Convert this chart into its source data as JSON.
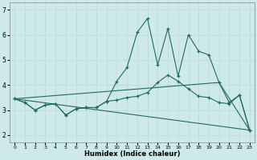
{
  "xlabel": "Humidex (Indice chaleur)",
  "bg_color": "#cde9e9",
  "grid_color": "#c0d8d8",
  "line_color": "#1e6b5e",
  "xlim": [
    -0.5,
    23.5
  ],
  "ylim": [
    1.7,
    7.3
  ],
  "yticks": [
    2,
    3,
    4,
    5,
    6,
    7
  ],
  "xtick_labels": [
    "0",
    "1",
    "2",
    "3",
    "4",
    "5",
    "6",
    "7",
    "8",
    "9",
    "10",
    "11",
    "12",
    "13",
    "14",
    "15",
    "16",
    "17",
    "18",
    "19",
    "20",
    "21",
    "22",
    "23"
  ],
  "lines": [
    {
      "x": [
        0,
        1,
        2,
        3,
        4,
        5,
        6,
        7,
        8,
        9,
        10,
        11,
        12,
        13,
        14,
        15,
        16,
        17,
        18,
        19,
        20,
        21,
        22,
        23
      ],
      "y": [
        3.45,
        3.3,
        3.0,
        3.2,
        3.25,
        2.8,
        3.05,
        3.1,
        3.1,
        3.35,
        4.15,
        4.7,
        6.1,
        6.65,
        4.8,
        6.25,
        4.35,
        6.0,
        5.35,
        5.2,
        4.1,
        3.3,
        3.6,
        2.2
      ],
      "marker": true
    },
    {
      "x": [
        0,
        1,
        2,
        3,
        4,
        5,
        6,
        7,
        8,
        9,
        10,
        11,
        12,
        13,
        14,
        15,
        16,
        17,
        18,
        19,
        20,
        21,
        22,
        23
      ],
      "y": [
        3.45,
        3.3,
        3.0,
        3.2,
        3.25,
        2.8,
        3.05,
        3.1,
        3.1,
        3.35,
        3.4,
        3.5,
        3.55,
        3.7,
        4.1,
        4.4,
        4.15,
        3.85,
        3.55,
        3.5,
        3.3,
        3.25,
        3.6,
        2.2
      ],
      "marker": true
    },
    {
      "x": [
        0,
        23
      ],
      "y": [
        3.45,
        2.2
      ],
      "marker": false
    },
    {
      "x": [
        0,
        20,
        23
      ],
      "y": [
        3.45,
        4.1,
        2.2
      ],
      "marker": false
    }
  ]
}
